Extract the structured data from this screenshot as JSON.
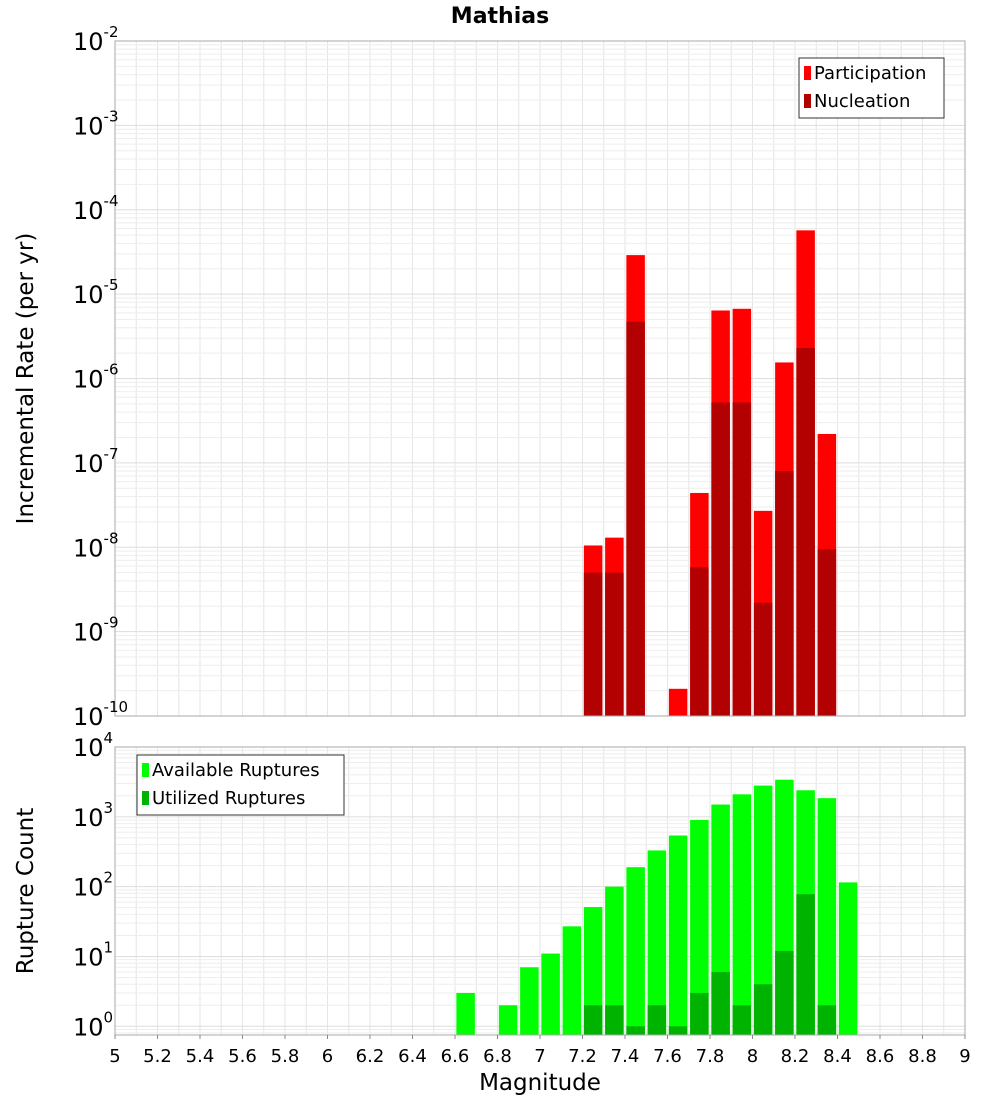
{
  "chart_data": [
    {
      "type": "bar",
      "title": "Mathias",
      "ylabel": "Incremental Rate (per yr)",
      "xlabel": "",
      "y_scale": "log",
      "ylim": [
        1e-10,
        0.01
      ],
      "xlim": [
        5,
        9
      ],
      "grid": true,
      "legend_position": "top-right",
      "yticks": [
        {
          "base": "10",
          "exp": "-10",
          "value": 1e-10
        },
        {
          "base": "10",
          "exp": "-9",
          "value": 1e-09
        },
        {
          "base": "10",
          "exp": "-8",
          "value": 1e-08
        },
        {
          "base": "10",
          "exp": "-7",
          "value": 1e-07
        },
        {
          "base": "10",
          "exp": "-6",
          "value": 1e-06
        },
        {
          "base": "10",
          "exp": "-5",
          "value": 1e-05
        },
        {
          "base": "10",
          "exp": "-4",
          "value": 0.0001
        },
        {
          "base": "10",
          "exp": "-3",
          "value": 0.001
        },
        {
          "base": "10",
          "exp": "-2",
          "value": 0.01
        }
      ],
      "series": [
        {
          "name": "Participation",
          "color": "#ff0000",
          "points": [
            {
              "x": 7.25,
              "y": 1.05e-08
            },
            {
              "x": 7.35,
              "y": 1.3e-08
            },
            {
              "x": 7.45,
              "y": 2.9e-05
            },
            {
              "x": 7.65,
              "y": 2.1e-10
            },
            {
              "x": 7.75,
              "y": 4.4e-08
            },
            {
              "x": 7.85,
              "y": 6.4e-06
            },
            {
              "x": 7.95,
              "y": 6.7e-06
            },
            {
              "x": 8.05,
              "y": 2.7e-08
            },
            {
              "x": 8.15,
              "y": 1.55e-06
            },
            {
              "x": 8.25,
              "y": 5.7e-05
            },
            {
              "x": 8.35,
              "y": 2.2e-07
            }
          ]
        },
        {
          "name": "Nucleation",
          "color": "#b30000",
          "points": [
            {
              "x": 7.25,
              "y": 5e-09
            },
            {
              "x": 7.35,
              "y": 5e-09
            },
            {
              "x": 7.45,
              "y": 4.7e-06
            },
            {
              "x": 7.75,
              "y": 5.8e-09
            },
            {
              "x": 7.85,
              "y": 5.2e-07
            },
            {
              "x": 7.95,
              "y": 5.2e-07
            },
            {
              "x": 8.05,
              "y": 2.2e-09
            },
            {
              "x": 8.15,
              "y": 8e-08
            },
            {
              "x": 8.25,
              "y": 2.3e-06
            },
            {
              "x": 8.35,
              "y": 9.5e-09
            }
          ]
        }
      ]
    },
    {
      "type": "bar",
      "title": "",
      "ylabel": "Rupture Count",
      "xlabel": "Magnitude",
      "y_scale": "log",
      "ylim": [
        0.75,
        10000.0
      ],
      "xlim": [
        5,
        9
      ],
      "grid": true,
      "legend_position": "top-left",
      "xticks": [
        "5",
        "5.2",
        "5.4",
        "5.6",
        "5.8",
        "6",
        "6.2",
        "6.4",
        "6.6",
        "6.8",
        "7",
        "7.2",
        "7.4",
        "7.6",
        "7.8",
        "8",
        "8.2",
        "8.4",
        "8.6",
        "8.8",
        "9"
      ],
      "yticks": [
        {
          "base": "10",
          "exp": "0",
          "value": 1
        },
        {
          "base": "10",
          "exp": "1",
          "value": 10
        },
        {
          "base": "10",
          "exp": "2",
          "value": 100
        },
        {
          "base": "10",
          "exp": "3",
          "value": 1000
        },
        {
          "base": "10",
          "exp": "4",
          "value": 10000
        }
      ],
      "series": [
        {
          "name": "Available Ruptures",
          "color": "#00ff00",
          "points": [
            {
              "x": 6.65,
              "y": 3
            },
            {
              "x": 6.85,
              "y": 2
            },
            {
              "x": 6.95,
              "y": 7
            },
            {
              "x": 7.05,
              "y": 11
            },
            {
              "x": 7.15,
              "y": 27
            },
            {
              "x": 7.25,
              "y": 51
            },
            {
              "x": 7.35,
              "y": 100
            },
            {
              "x": 7.45,
              "y": 190
            },
            {
              "x": 7.55,
              "y": 330
            },
            {
              "x": 7.65,
              "y": 540
            },
            {
              "x": 7.75,
              "y": 900
            },
            {
              "x": 7.85,
              "y": 1500
            },
            {
              "x": 7.95,
              "y": 2100
            },
            {
              "x": 8.05,
              "y": 2800
            },
            {
              "x": 8.15,
              "y": 3400
            },
            {
              "x": 8.25,
              "y": 2400
            },
            {
              "x": 8.35,
              "y": 1850
            },
            {
              "x": 8.45,
              "y": 115
            }
          ]
        },
        {
          "name": "Utilized Ruptures",
          "color": "#00b300",
          "points": [
            {
              "x": 7.25,
              "y": 2
            },
            {
              "x": 7.35,
              "y": 2
            },
            {
              "x": 7.45,
              "y": 1
            },
            {
              "x": 7.55,
              "y": 2
            },
            {
              "x": 7.65,
              "y": 1
            },
            {
              "x": 7.75,
              "y": 3
            },
            {
              "x": 7.85,
              "y": 6
            },
            {
              "x": 7.95,
              "y": 2
            },
            {
              "x": 8.05,
              "y": 4
            },
            {
              "x": 8.15,
              "y": 12
            },
            {
              "x": 8.25,
              "y": 78
            },
            {
              "x": 8.35,
              "y": 2
            }
          ]
        }
      ]
    }
  ]
}
